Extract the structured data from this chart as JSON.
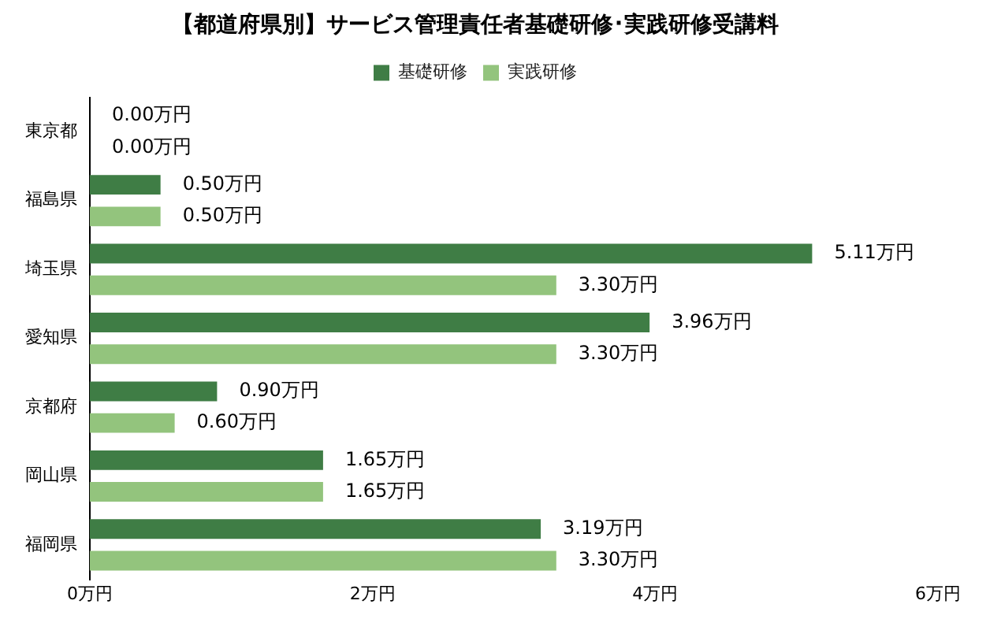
{
  "chart_data": {
    "type": "bar",
    "title": "【都道府県別】サービス管理責任者基礎研修･実践研修受講料",
    "orientation": "horizontal",
    "categories": [
      "東京都",
      "福島県",
      "埼玉県",
      "愛知県",
      "京都府",
      "岡山県",
      "福岡県"
    ],
    "series": [
      {
        "name": "基礎研修",
        "color": "#3f7d45",
        "values": [
          0,
          0.5,
          5.11,
          3.96,
          0.9,
          1.65,
          3.19
        ],
        "value_labels": [
          "0.00万円",
          "0.50万円",
          "5.11万円",
          "3.96万円",
          "0.90万円",
          "1.65万円",
          "3.19万円"
        ]
      },
      {
        "name": "実践研修",
        "color": "#93c47d",
        "values": [
          0,
          0.5,
          3.3,
          3.3,
          0.6,
          1.65,
          3.3
        ],
        "value_labels": [
          "0.00万円",
          "0.50万円",
          "3.30万円",
          "3.30万円",
          "0.60万円",
          "1.65万円",
          "3.30万円"
        ]
      }
    ],
    "xlim": [
      0,
      6
    ],
    "xticks": [
      {
        "value": 0,
        "label": "0万円"
      },
      {
        "value": 2,
        "label": "2万円"
      },
      {
        "value": 4,
        "label": "4万円"
      },
      {
        "value": 6,
        "label": "6万円"
      }
    ],
    "grid": false,
    "legend": "top"
  }
}
